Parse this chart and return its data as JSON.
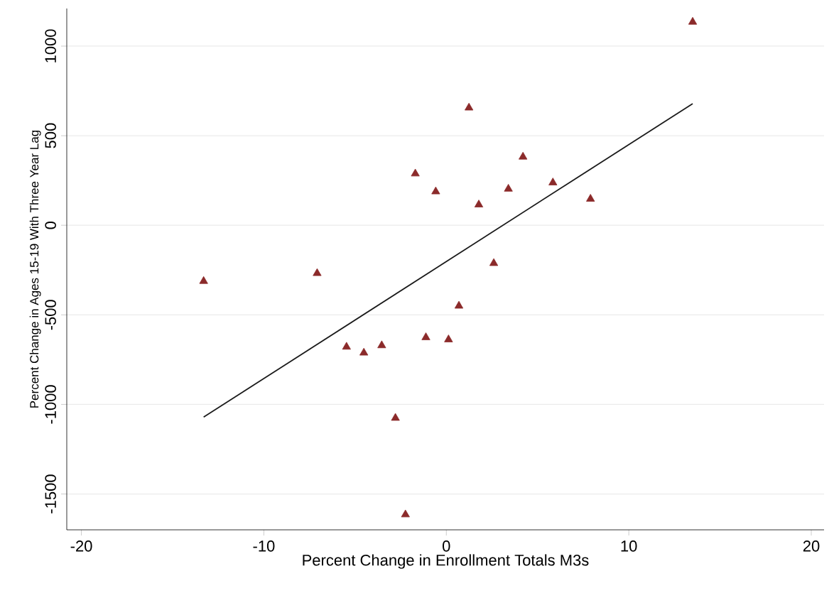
{
  "chart_data": {
    "type": "scatter",
    "xlabel": "Percent Change in Enrollment Totals M3s",
    "ylabel": "Percent Change in Ages 15-19 With Three Year Lag",
    "xlim": [
      -20.8,
      20.7
    ],
    "ylim": [
      -1700,
      1210
    ],
    "xticks": [
      -20,
      -10,
      0,
      10,
      20
    ],
    "yticks": [
      -1500,
      -1000,
      -500,
      0,
      500,
      1000
    ],
    "grid": "y",
    "series": [
      {
        "marker": "triangle",
        "color": "#8b2a2a",
        "x": [
          13.5,
          1.24,
          4.2,
          -1.7,
          -0.58,
          3.4,
          5.84,
          1.78,
          7.9,
          -13.3,
          -7.08,
          2.6,
          0.69,
          -5.47,
          -4.52,
          -3.54,
          -1.12,
          0.12,
          -2.79,
          -2.24
        ],
        "values": [
          1135,
          656,
          382,
          288,
          188,
          203,
          238,
          115,
          147,
          -312,
          -268,
          -212,
          -450,
          -679,
          -712,
          -671,
          -626,
          -638,
          -1076,
          -1615
        ]
      },
      {
        "type": "line",
        "marker": "none",
        "color": "#1a1a1a",
        "x": [
          -13.3,
          13.5
        ],
        "values": [
          -1071,
          679
        ]
      }
    ]
  }
}
